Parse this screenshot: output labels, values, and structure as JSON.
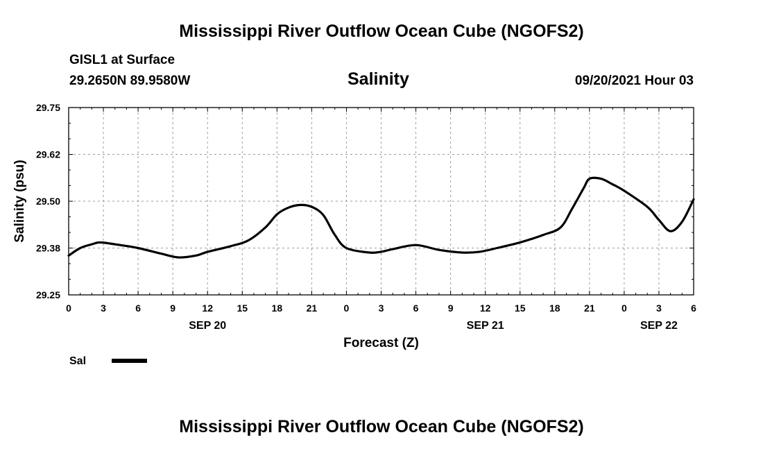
{
  "page": {
    "title": "Mississippi River Outflow Ocean Cube (NGOFS2)",
    "footer_title": "Mississippi River Outflow Ocean Cube (NGOFS2)",
    "station": "GISL1 at Surface",
    "coords": "29.2650N  89.9580W",
    "plot_title": "Salinity",
    "timestamp": "09/20/2021 Hour 03"
  },
  "chart_data": {
    "type": "line",
    "title": "Salinity",
    "xlabel": "Forecast (Z)",
    "ylabel": "Salinity (psu)",
    "xlim": [
      0,
      54
    ],
    "ylim": [
      29.25,
      29.75
    ],
    "grid": true,
    "x_ticks": [
      0,
      3,
      6,
      9,
      12,
      15,
      18,
      21,
      24,
      27,
      30,
      33,
      36,
      39,
      42,
      45,
      48,
      51,
      54
    ],
    "x_tick_labels": [
      "0",
      "3",
      "6",
      "9",
      "12",
      "15",
      "18",
      "21",
      "0",
      "3",
      "6",
      "9",
      "12",
      "15",
      "18",
      "21",
      "0",
      "3",
      "6"
    ],
    "y_ticks": [
      29.25,
      29.375,
      29.5,
      29.625,
      29.75
    ],
    "y_tick_labels": [
      "29.25",
      "29.38",
      "29.50",
      "29.62",
      "29.75"
    ],
    "date_labels": [
      {
        "x": 12,
        "text": "SEP 20"
      },
      {
        "x": 36,
        "text": "SEP 21"
      },
      {
        "x": 51,
        "text": "SEP 22"
      }
    ],
    "legend": {
      "position": "bottom-left",
      "label": "Sal"
    },
    "series": [
      {
        "name": "Sal",
        "color": "#000000",
        "x": [
          0,
          1,
          2,
          2.7,
          4,
          6,
          8,
          9.5,
          11,
          12,
          14,
          15.5,
          17,
          18,
          19,
          20,
          21,
          22,
          23,
          24,
          26,
          27,
          28,
          30,
          32,
          34,
          35.5,
          37,
          39,
          41,
          42.5,
          43.5,
          44.5,
          45,
          46,
          47,
          48,
          50,
          51,
          52,
          53,
          54
        ],
        "y": [
          29.355,
          29.375,
          29.385,
          29.39,
          29.385,
          29.375,
          29.36,
          29.35,
          29.355,
          29.365,
          29.38,
          29.395,
          29.43,
          29.465,
          29.483,
          29.49,
          29.485,
          29.463,
          29.41,
          29.375,
          29.363,
          29.365,
          29.372,
          29.383,
          29.37,
          29.363,
          29.365,
          29.375,
          29.39,
          29.41,
          29.43,
          29.48,
          29.535,
          29.56,
          29.56,
          29.545,
          29.528,
          29.485,
          29.45,
          29.42,
          29.445,
          29.505
        ]
      }
    ]
  }
}
